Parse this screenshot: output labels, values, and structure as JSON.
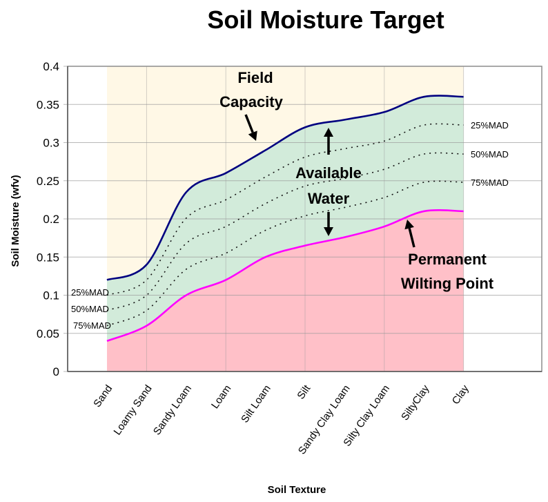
{
  "chart_data": {
    "type": "area",
    "title": "Soil Moisture Target",
    "xlabel": "Soil Texture",
    "ylabel": "Soil Moisture (wfv)",
    "ylim": [
      0,
      0.4
    ],
    "yticks": [
      "0",
      "0.05",
      "0.1",
      "0.15",
      "0.2",
      "0.25",
      "0.3",
      "0.35",
      "0.4"
    ],
    "grid": true,
    "categories": [
      "Sand",
      "Loamy Sand",
      "Sandy Loam",
      "Loam",
      "Silt Loam",
      "Silt",
      "Sandy Clay Loam",
      "Silty Clay Loam",
      "SiltyClay",
      "Clay"
    ],
    "series": [
      {
        "name": "Field Capacity",
        "color": "#000080",
        "values": [
          0.12,
          0.14,
          0.235,
          0.26,
          0.29,
          0.32,
          0.33,
          0.34,
          0.36,
          0.36
        ]
      },
      {
        "name": "25%MAD",
        "color": "#000000",
        "style": "dotted",
        "values": [
          0.1,
          0.12,
          0.201,
          0.225,
          0.255,
          0.281,
          0.292,
          0.302,
          0.323,
          0.323
        ]
      },
      {
        "name": "50%MAD",
        "color": "#000000",
        "style": "dotted",
        "values": [
          0.08,
          0.1,
          0.168,
          0.19,
          0.22,
          0.243,
          0.253,
          0.265,
          0.285,
          0.285
        ]
      },
      {
        "name": "75%MAD",
        "color": "#000000",
        "style": "dotted",
        "values": [
          0.06,
          0.08,
          0.134,
          0.155,
          0.185,
          0.204,
          0.215,
          0.228,
          0.248,
          0.248
        ]
      },
      {
        "name": "Permanent Wilting Point",
        "color": "#FF00FF",
        "values": [
          0.04,
          0.06,
          0.1,
          0.12,
          0.15,
          0.165,
          0.176,
          0.19,
          0.21,
          0.21
        ]
      }
    ],
    "regions": [
      {
        "name": "above field capacity",
        "color": "#FFF8E6"
      },
      {
        "name": "available water",
        "color": "#D2EBDA"
      },
      {
        "name": "below wilting point",
        "color": "#FFC0C8"
      }
    ],
    "annotations": [
      {
        "text": "Field Capacity",
        "lines": [
          "Field",
          "Capacity"
        ]
      },
      {
        "text": "Available Water",
        "lines": [
          "Available",
          "Water"
        ]
      },
      {
        "text": "Permanent Wilting Point",
        "lines": [
          "Permanent",
          "Wilting Point"
        ]
      }
    ],
    "mad_labels_left": [
      "25%MAD",
      "50%MAD",
      "75%MAD"
    ],
    "mad_labels_right": [
      "25%MAD",
      "50%MAD",
      "75%MAD"
    ]
  }
}
